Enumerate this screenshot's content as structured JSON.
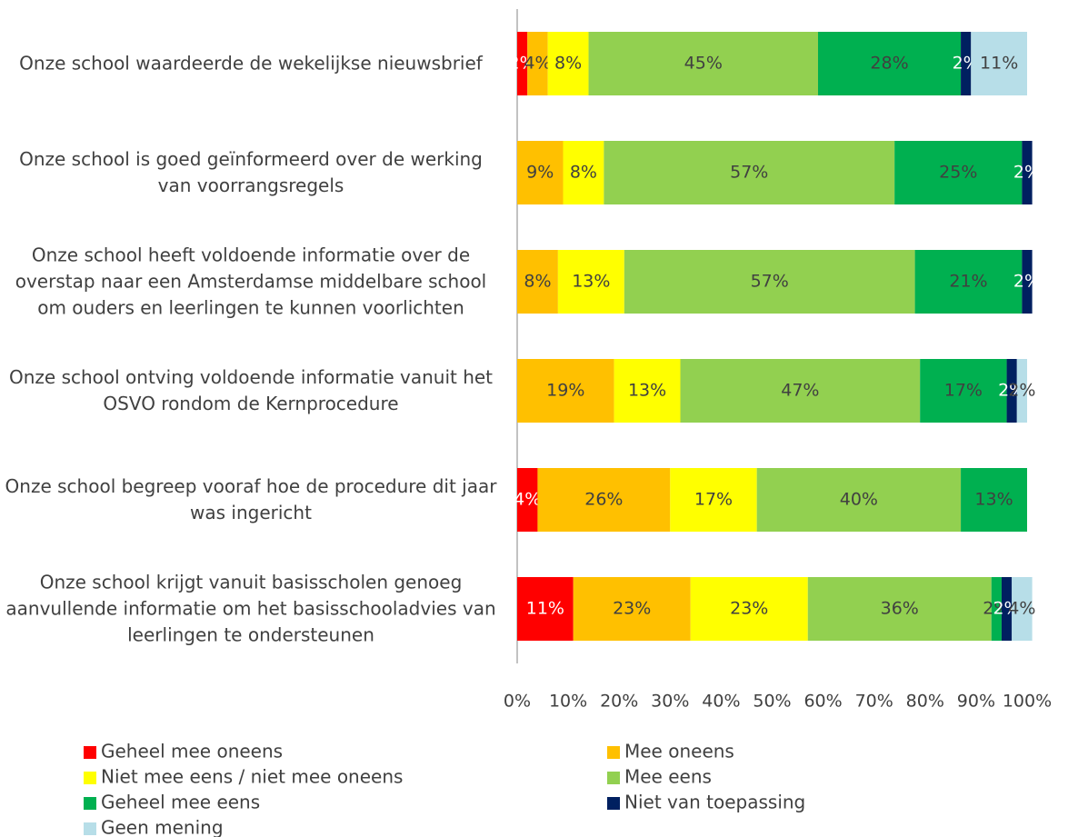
{
  "chart_data": {
    "type": "stacked-bar-horizontal",
    "categories": [
      "Onze school waardeerde de wekelijkse nieuwsbrief",
      "Onze school is goed geïnformeerd over de werking van voorrangsregels",
      "Onze school heeft voldoende informatie over de overstap naar een Amsterdamse middelbare school om ouders en leerlingen te kunnen voorlichten",
      "Onze school ontving voldoende informatie vanuit het OSVO rondom de Kernprocedure",
      "Onze school begreep vooraf hoe de procedure dit jaar was ingericht",
      "Onze school krijgt vanuit basisscholen genoeg aanvullende informatie om het basisschooladvies van leerlingen te ondersteunen"
    ],
    "series": [
      {
        "name": "Geheel mee oneens",
        "color": "#ff0000",
        "values": [
          2,
          null,
          null,
          null,
          4,
          11
        ],
        "value_labels": [
          "2%",
          null,
          null,
          null,
          "4%",
          "11%"
        ]
      },
      {
        "name": "Mee oneens",
        "color": "#ffc000",
        "values": [
          4,
          9,
          8,
          19,
          26,
          23
        ],
        "value_labels": [
          "4%",
          "9%",
          "8%",
          "19%",
          "26%",
          "23%"
        ]
      },
      {
        "name": "Niet mee eens / niet mee oneens",
        "color": "#ffff00",
        "values": [
          8,
          8,
          13,
          13,
          17,
          23
        ],
        "value_labels": [
          "8%",
          "8%",
          "13%",
          "13%",
          "17%",
          "23%"
        ]
      },
      {
        "name": "Mee eens",
        "color": "#92d050",
        "values": [
          45,
          57,
          57,
          47,
          40,
          36
        ],
        "value_labels": [
          "45%",
          "57%",
          "57%",
          "47%",
          "40%",
          "36%"
        ]
      },
      {
        "name": "Geheel mee eens",
        "color": "#00b050",
        "values": [
          28,
          25,
          21,
          17,
          13,
          2
        ],
        "value_labels": [
          "28%",
          "25%",
          "21%",
          "17%",
          "13%",
          "2%"
        ]
      },
      {
        "name": "Niet van toepassing",
        "color": "#002060",
        "values": [
          2,
          2,
          2,
          2,
          null,
          2
        ],
        "value_labels": [
          "2%",
          "2%",
          "2%",
          "2%",
          null,
          "2%"
        ]
      },
      {
        "name": "Geen mening",
        "color": "#b7dee8",
        "values": [
          11,
          null,
          null,
          2,
          null,
          4
        ],
        "value_labels": [
          "11%",
          null,
          null,
          "2%",
          null,
          "4%"
        ]
      }
    ],
    "xlim": [
      0,
      100
    ],
    "xticks": [
      {
        "value": 0,
        "label": "0%"
      },
      {
        "value": 10,
        "label": "10%"
      },
      {
        "value": 20,
        "label": "20%"
      },
      {
        "value": 30,
        "label": "30%"
      },
      {
        "value": 40,
        "label": "40%"
      },
      {
        "value": 50,
        "label": "50%"
      },
      {
        "value": 60,
        "label": "60%"
      },
      {
        "value": 70,
        "label": "70%"
      },
      {
        "value": 80,
        "label": "80%"
      },
      {
        "value": 90,
        "label": "90%"
      },
      {
        "value": 100,
        "label": "100%"
      }
    ],
    "legend": "bottom"
  }
}
